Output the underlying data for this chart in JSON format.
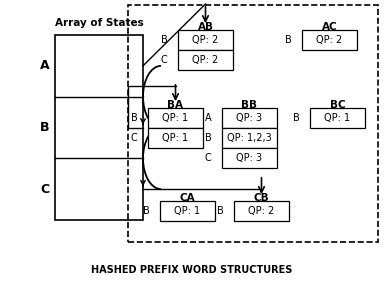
{
  "title": "HASHED PREFIX WORD STRUCTURES",
  "bg_color": "#ffffff",
  "array_label": "Array of States",
  "array_rows": [
    "A",
    "B",
    "C"
  ]
}
